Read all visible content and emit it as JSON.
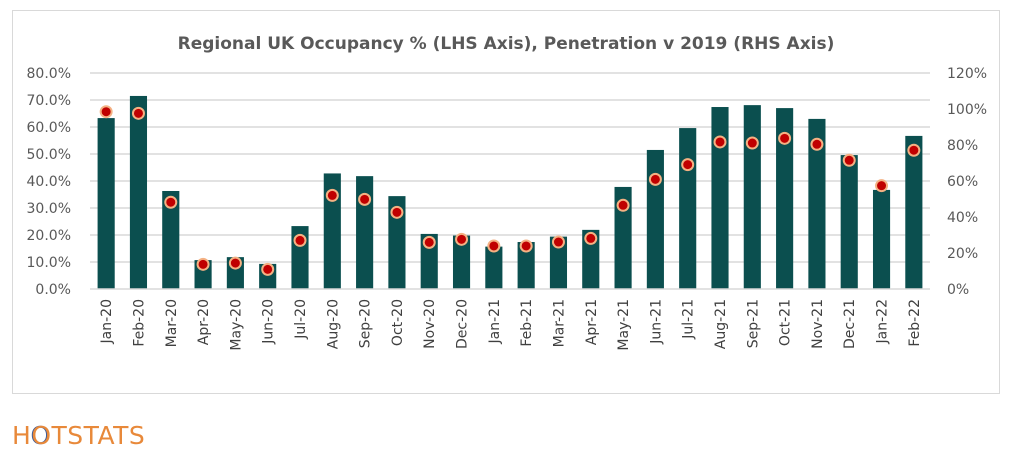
{
  "chart_data": {
    "type": "bar",
    "title": "Regional UK Occupancy % (LHS Axis), Penetration v 2019 (RHS Axis)",
    "xlabel": "",
    "ylabel": "",
    "categories": [
      "Jan-20",
      "Feb-20",
      "Mar-20",
      "Apr-20",
      "May-20",
      "Jun-20",
      "Jul-20",
      "Aug-20",
      "Sep-20",
      "Oct-20",
      "Nov-20",
      "Dec-20",
      "Jan-21",
      "Feb-21",
      "Mar-21",
      "Apr-21",
      "May-21",
      "Jun-21",
      "Jul-21",
      "Aug-21",
      "Sep-21",
      "Oct-21",
      "Nov-21",
      "Dec-21",
      "Jan-22",
      "Feb-22"
    ],
    "series": [
      {
        "name": "Regional UK Occupancy %",
        "type": "bar",
        "axis": "left",
        "color": "#0b4f4f",
        "values": [
          63.3,
          71.5,
          36.3,
          10.7,
          11.8,
          9.3,
          23.3,
          42.8,
          41.8,
          34.4,
          20.4,
          19.8,
          15.7,
          17.4,
          19.4,
          21.9,
          37.8,
          51.5,
          59.6,
          67.4,
          68.1,
          67.0,
          63.0,
          49.6,
          36.7,
          56.7
        ]
      },
      {
        "name": "Penetration v 2019",
        "type": "scatter",
        "axis": "right",
        "color": "#c00000",
        "edge_color": "#f4b183",
        "values": [
          98.5,
          97.6,
          48.2,
          13.7,
          14.4,
          10.9,
          27.0,
          52.0,
          49.8,
          42.6,
          25.9,
          27.6,
          23.9,
          23.9,
          26.1,
          28.1,
          46.5,
          60.9,
          69.1,
          81.7,
          81.1,
          83.7,
          80.4,
          71.5,
          57.4,
          77.1
        ]
      }
    ],
    "y_left": {
      "range": [
        0,
        80
      ],
      "ticks": [
        "0.0%",
        "10.0%",
        "20.0%",
        "30.0%",
        "40.0%",
        "50.0%",
        "60.0%",
        "70.0%",
        "80.0%"
      ],
      "tick_values": [
        0,
        10,
        20,
        30,
        40,
        50,
        60,
        70,
        80
      ]
    },
    "y_right": {
      "range": [
        0,
        120
      ],
      "ticks": [
        "0%",
        "20%",
        "40%",
        "60%",
        "80%",
        "100%",
        "120%"
      ],
      "tick_values": [
        0,
        20,
        40,
        60,
        80,
        100,
        120
      ]
    },
    "grid": true,
    "grid_color": "#d9d9d9",
    "legend": "none"
  },
  "brand": {
    "logo_text_pre": "H",
    "logo_o": "O",
    "logo_text_post": "TSTATS",
    "logo_color": "#e8893a",
    "logo_o_accent": "#3b5b9a"
  }
}
